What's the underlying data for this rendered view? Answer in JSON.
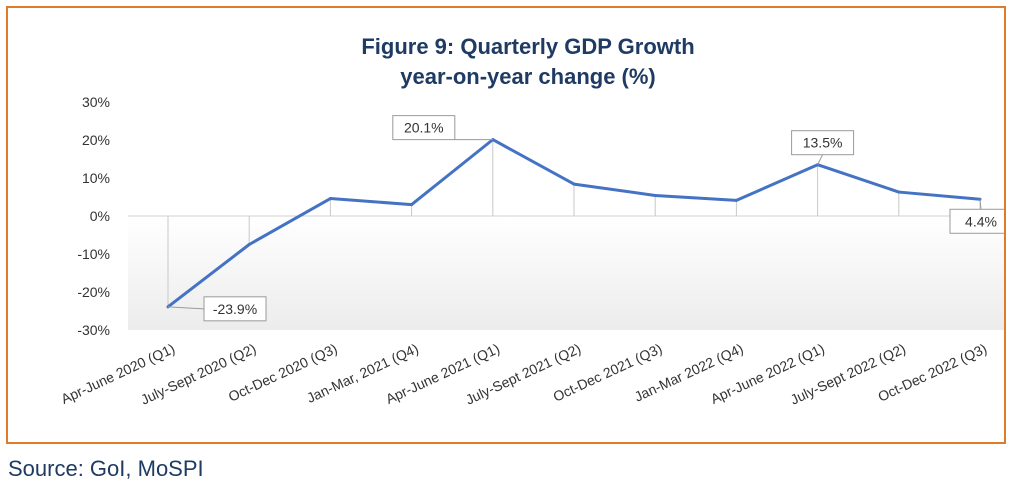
{
  "chart_data": {
    "type": "line",
    "title_line1": "Figure 9: Quarterly GDP Growth",
    "title_line2": "year-on-year change (%)",
    "categories": [
      "Apr-June 2020 (Q1)",
      "July-Sept 2020 (Q2)",
      "Oct-Dec 2020 (Q3)",
      "Jan-Mar, 2021 (Q4)",
      "Apr-June 2021 (Q1)",
      "July-Sept 2021 (Q2)",
      "Oct-Dec 2021 (Q3)",
      "Jan-Mar 2022 (Q4)",
      "Apr-June 2022 (Q1)",
      "July-Sept 2022 (Q2)",
      "Oct-Dec 2022 (Q3)"
    ],
    "values": [
      -23.9,
      -7.5,
      4.6,
      3.0,
      20.1,
      8.4,
      5.4,
      4.1,
      13.5,
      6.3,
      4.4
    ],
    "ylim": [
      -30,
      30
    ],
    "yticks": [
      -30,
      -20,
      -10,
      0,
      10,
      20,
      30
    ],
    "ytick_labels": [
      "-30%",
      "-20%",
      "-10%",
      "0%",
      "10%",
      "20%",
      "30%"
    ],
    "annotations": [
      {
        "index": 0,
        "label": "-23.9%",
        "placement": "below-right"
      },
      {
        "index": 4,
        "label": "20.1%",
        "placement": "upper-left"
      },
      {
        "index": 8,
        "label": "13.5%",
        "placement": "above"
      },
      {
        "index": 10,
        "label": "4.4%",
        "placement": "below"
      }
    ],
    "grid": "vertical-drop-lines",
    "legend": "none"
  },
  "colors": {
    "line": "#4472c4",
    "frame": "#e07b2a",
    "title": "#1f3b63"
  },
  "source": "Source: GoI, MoSPI"
}
